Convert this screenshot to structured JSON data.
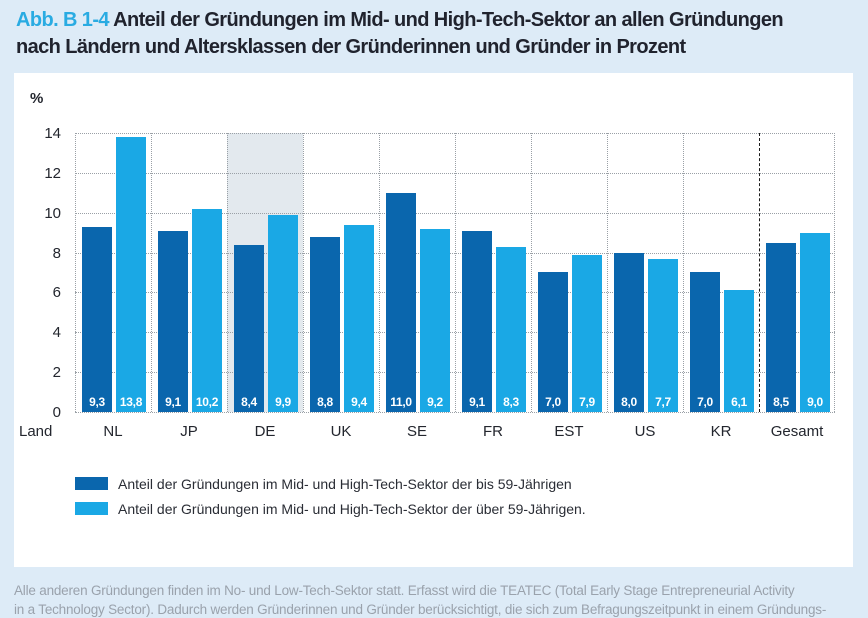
{
  "page": {
    "figure_label": "Abb. B 1-4",
    "title_line1": "Anteil der Gründungen im Mid- und High-Tech-Sektor an allen Gründungen",
    "title_line2": "nach Ländern und Altersklassen der Gründerinnen und Gründer in Prozent",
    "note_line1": "Alle anderen Gründungen finden im No- und Low-Tech-Sektor statt. Erfasst wird die TEATEC (Total Early Stage Entrepreneurial Activity",
    "note_line2": "in a Technology Sector). Dadurch werden Gründerinnen und Gründer berücksichtigt, die sich zum Befragungszeitpunkt in einem Gründungs-"
  },
  "colors": {
    "page_bg": "#ddebf7",
    "card_bg": "#ffffff",
    "accent_blue": "#29abe2",
    "series_dark": "#0a66ad",
    "series_light": "#1aa8e5",
    "highlight_band": "#e3e9ee",
    "grid_line": "#9aa0a6",
    "separator_dashed": "#1c1c1c",
    "note_text": "#9aa2ac"
  },
  "chart_data": {
    "type": "bar",
    "unit_label": "%",
    "axis_label": "Land",
    "categories": [
      "NL",
      "JP",
      "DE",
      "UK",
      "SE",
      "FR",
      "EST",
      "US",
      "KR",
      "Gesamt"
    ],
    "series": [
      {
        "name": "Anteil der Gründungen im Mid- und High-Tech-Sektor der bis 59-Jährigen",
        "color": "#0a66ad",
        "values": [
          9.3,
          9.1,
          8.4,
          8.8,
          11.0,
          9.1,
          7.0,
          8.0,
          7.0,
          8.5
        ],
        "labels": [
          "9,3",
          "9,1",
          "8,4",
          "8,8",
          "11,0",
          "9,1",
          "7,0",
          "8,0",
          "7,0",
          "8,5"
        ]
      },
      {
        "name": "Anteil der Gründungen im Mid- und High-Tech-Sektor der über 59-Jährigen.",
        "color": "#1aa8e5",
        "values": [
          13.8,
          10.2,
          9.9,
          9.4,
          9.2,
          8.3,
          7.9,
          7.7,
          6.1,
          9.0
        ],
        "labels": [
          "13,8",
          "10,2",
          "9,9",
          "9,4",
          "9,2",
          "8,3",
          "7,9",
          "7,7",
          "6,1",
          "9,0"
        ]
      }
    ],
    "y_ticks": [
      0,
      2,
      4,
      6,
      8,
      10,
      12,
      14
    ],
    "ylim": [
      0,
      14
    ],
    "grid": "dotted horizontal gridlines and dotted vertical group separators",
    "highlighted_category": "DE",
    "separator_before_category": "Gesamt",
    "legend_position": "below"
  }
}
